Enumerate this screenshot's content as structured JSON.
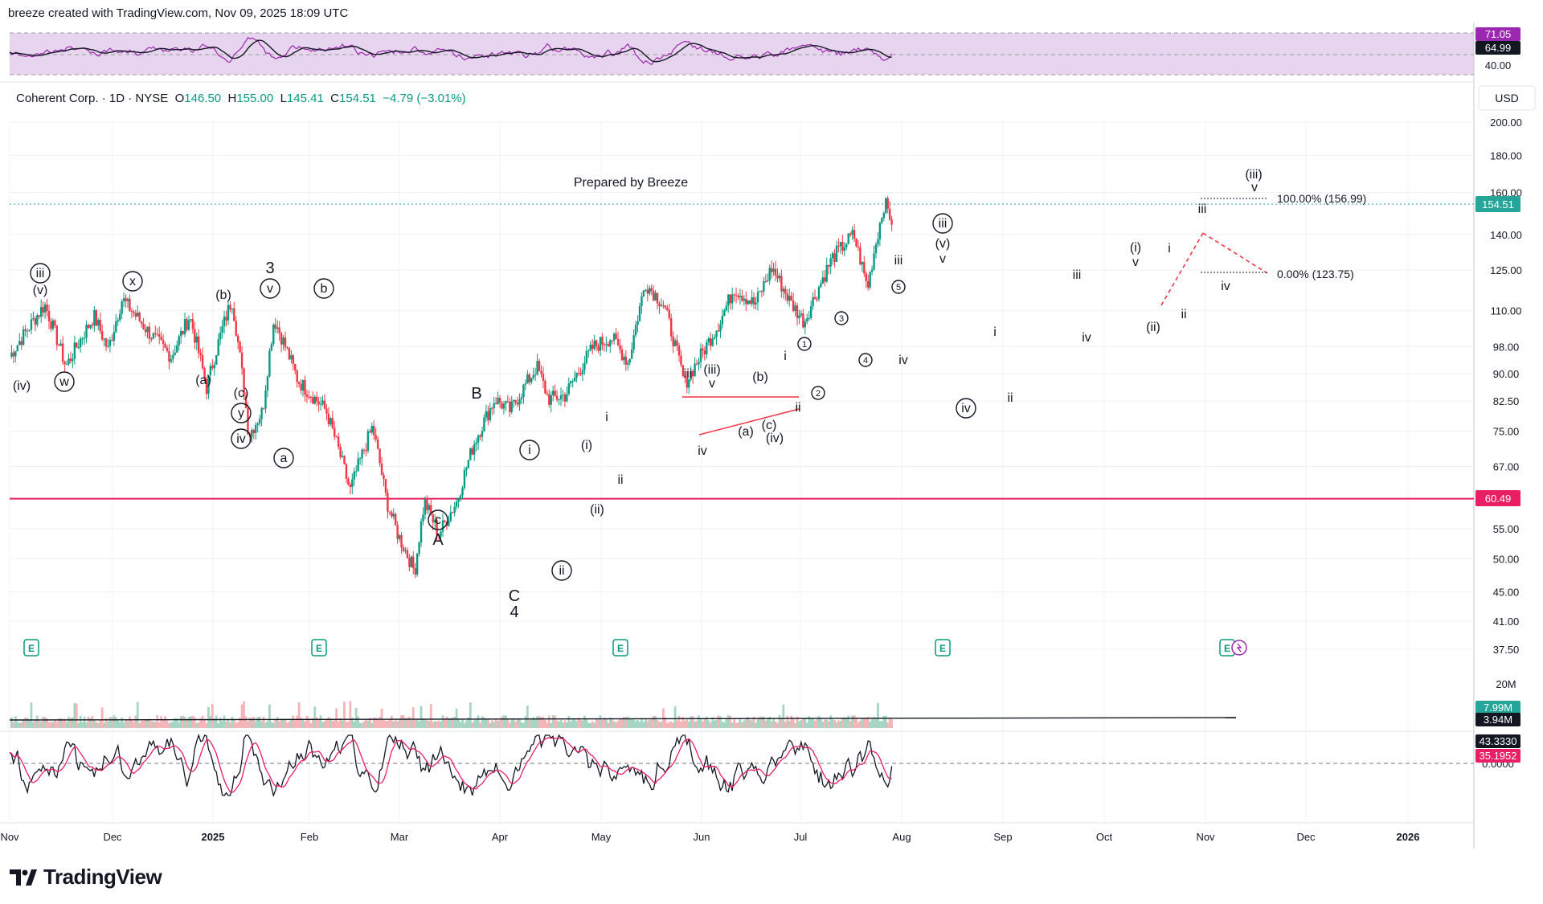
{
  "header": {
    "credit": "breeze created with TradingView.com, Nov 09, 2025 18:09 UTC"
  },
  "legend": {
    "symbol": "Coherent Corp. · 1D · NYSE",
    "open_label": "O",
    "open": "146.50",
    "high_label": "H",
    "high": "155.00",
    "low_label": "L",
    "low": "145.41",
    "close_label": "C",
    "close": "154.51",
    "change": "−4.79 (−3.01%)"
  },
  "currency": "USD",
  "annotation": "Prepared by Breeze",
  "fib": {
    "level_100": "100.00% (156.99)",
    "level_0": "0.00% (123.75)"
  },
  "logo_text": "TradingView",
  "colors": {
    "up": "#089981",
    "down": "#f23645",
    "support": "#e91e63",
    "rsi_band": "#e1bee7",
    "rsi_line": "#9c27b0",
    "price_tag": "#26a69a"
  },
  "icons": {
    "earnings": "earnings-E-icon",
    "dividend": "dividend-icon",
    "logo": "tradingview-logo-icon"
  },
  "chart_data": [
    {
      "type": "line",
      "panel": "rsi",
      "y_ticks": [
        "71.05",
        "64.99",
        "40.00"
      ],
      "badges": [
        {
          "text": "71.05",
          "bg": "#9c27b0"
        },
        {
          "text": "64.99",
          "bg": "#131722"
        }
      ]
    },
    {
      "type": "candlestick",
      "panel": "price",
      "y_scale": "log",
      "y_ticks": [
        "200.00",
        "180.00",
        "160.00",
        "140.00",
        "125.00",
        "110.00",
        "98.00",
        "90.00",
        "82.50",
        "75.00",
        "67.00",
        "60.49",
        "55.00",
        "50.00",
        "45.00",
        "41.00",
        "37.50"
      ],
      "x_ticks": [
        "Nov",
        "Dec",
        "2025",
        "Feb",
        "Mar",
        "Apr",
        "May",
        "Jun",
        "Jul",
        "Aug",
        "Sep",
        "Oct",
        "Nov",
        "Dec",
        "2026"
      ],
      "last_price": "154.51",
      "support_level": "60.49",
      "anchors": [
        {
          "x": 0,
          "y": 95
        },
        {
          "x": 25,
          "y": 112
        },
        {
          "x": 40,
          "y": 92
        },
        {
          "x": 60,
          "y": 108
        },
        {
          "x": 70,
          "y": 97
        },
        {
          "x": 80,
          "y": 114
        },
        {
          "x": 100,
          "y": 102
        },
        {
          "x": 115,
          "y": 95
        },
        {
          "x": 128,
          "y": 108
        },
        {
          "x": 140,
          "y": 86
        },
        {
          "x": 152,
          "y": 105
        },
        {
          "x": 158,
          "y": 114
        },
        {
          "x": 170,
          "y": 74
        },
        {
          "x": 180,
          "y": 80
        },
        {
          "x": 188,
          "y": 107
        },
        {
          "x": 205,
          "y": 88
        },
        {
          "x": 225,
          "y": 80
        },
        {
          "x": 242,
          "y": 62
        },
        {
          "x": 258,
          "y": 76
        },
        {
          "x": 268,
          "y": 60
        },
        {
          "x": 276,
          "y": 54
        },
        {
          "x": 288,
          "y": 48
        },
        {
          "x": 295,
          "y": 60
        },
        {
          "x": 305,
          "y": 54
        },
        {
          "x": 318,
          "y": 60
        },
        {
          "x": 330,
          "y": 72
        },
        {
          "x": 345,
          "y": 83
        },
        {
          "x": 356,
          "y": 80
        },
        {
          "x": 375,
          "y": 92
        },
        {
          "x": 383,
          "y": 83
        },
        {
          "x": 395,
          "y": 84
        },
        {
          "x": 415,
          "y": 98
        },
        {
          "x": 428,
          "y": 101
        },
        {
          "x": 440,
          "y": 93
        },
        {
          "x": 452,
          "y": 120
        },
        {
          "x": 465,
          "y": 112
        },
        {
          "x": 480,
          "y": 87
        },
        {
          "x": 495,
          "y": 98
        },
        {
          "x": 505,
          "y": 106
        },
        {
          "x": 515,
          "y": 118
        },
        {
          "x": 530,
          "y": 112
        },
        {
          "x": 542,
          "y": 126
        },
        {
          "x": 555,
          "y": 113
        },
        {
          "x": 565,
          "y": 106
        },
        {
          "x": 585,
          "y": 130
        },
        {
          "x": 600,
          "y": 140
        },
        {
          "x": 610,
          "y": 118
        },
        {
          "x": 622,
          "y": 155
        },
        {
          "x": 628,
          "y": 145
        }
      ]
    },
    {
      "type": "bar",
      "panel": "volume",
      "y_ticks": [
        "20M"
      ],
      "badges": [
        {
          "text": "7.99M",
          "bg": "#26a69a"
        },
        {
          "text": "3.94M",
          "bg": "#131722"
        }
      ]
    },
    {
      "type": "line",
      "panel": "oscillator",
      "y_ticks": [
        "0.0000"
      ],
      "badges": [
        {
          "text": "43.3330",
          "bg": "#131722"
        },
        {
          "text": "35.1952",
          "bg": "#e91e63"
        }
      ]
    }
  ],
  "wave_labels": [
    {
      "t": "(iv)",
      "x": 27,
      "y": 485,
      "c": false
    },
    {
      "t": "iii",
      "x": 50,
      "y": 345,
      "c": true
    },
    {
      "t": "(v)",
      "x": 50,
      "y": 366,
      "c": false
    },
    {
      "t": "w",
      "x": 80,
      "y": 480,
      "c": true
    },
    {
      "t": "x",
      "x": 165,
      "y": 355,
      "c": true
    },
    {
      "t": "(b)",
      "x": 278,
      "y": 372,
      "c": false
    },
    {
      "t": "(a)",
      "x": 253,
      "y": 478,
      "c": false
    },
    {
      "t": "3",
      "x": 336,
      "y": 340,
      "c": false,
      "big": true
    },
    {
      "t": "v",
      "x": 336,
      "y": 364,
      "c": true
    },
    {
      "t": "(c)",
      "x": 300,
      "y": 494,
      "c": false
    },
    {
      "t": "y",
      "x": 300,
      "y": 519,
      "c": true
    },
    {
      "t": "iv",
      "x": 300,
      "y": 551,
      "c": true
    },
    {
      "t": "a",
      "x": 353,
      "y": 575,
      "c": true
    },
    {
      "t": "b",
      "x": 403,
      "y": 364,
      "c": true
    },
    {
      "t": "B",
      "x": 593,
      "y": 496,
      "c": false,
      "big": true
    },
    {
      "t": "c",
      "x": 545,
      "y": 652,
      "c": true
    },
    {
      "t": "A",
      "x": 545,
      "y": 678,
      "c": false,
      "big": true
    },
    {
      "t": "i",
      "x": 659,
      "y": 565,
      "c": true
    },
    {
      "t": "C",
      "x": 640,
      "y": 748,
      "c": false,
      "big": true
    },
    {
      "t": "4",
      "x": 640,
      "y": 768,
      "c": false,
      "big": true
    },
    {
      "t": "ii",
      "x": 699,
      "y": 715,
      "c": true
    },
    {
      "t": "(i)",
      "x": 730,
      "y": 559,
      "c": false
    },
    {
      "t": "ii",
      "x": 772,
      "y": 602,
      "c": false
    },
    {
      "t": "(ii)",
      "x": 743,
      "y": 639,
      "c": false
    },
    {
      "t": "i",
      "x": 755,
      "y": 524,
      "c": false
    },
    {
      "t": "iii",
      "x": 856,
      "y": 470,
      "c": false
    },
    {
      "t": "(iii)",
      "x": 886,
      "y": 465,
      "c": false
    },
    {
      "t": "v",
      "x": 886,
      "y": 482,
      "c": false
    },
    {
      "t": "iv",
      "x": 874,
      "y": 566,
      "c": false
    },
    {
      "t": "(a)",
      "x": 928,
      "y": 542,
      "c": false
    },
    {
      "t": "(b)",
      "x": 946,
      "y": 474,
      "c": false
    },
    {
      "t": "(c)",
      "x": 957,
      "y": 534,
      "c": false
    },
    {
      "t": "(iv)",
      "x": 964,
      "y": 550,
      "c": false
    },
    {
      "t": "ii",
      "x": 993,
      "y": 512,
      "c": false
    },
    {
      "t": "2",
      "x": 1018,
      "y": 493,
      "c": true,
      "small": true
    },
    {
      "t": "i",
      "x": 977,
      "y": 448,
      "c": false
    },
    {
      "t": "1",
      "x": 1001,
      "y": 432,
      "c": true,
      "small": true
    },
    {
      "t": "3",
      "x": 1047,
      "y": 400,
      "c": true,
      "small": true
    },
    {
      "t": "4",
      "x": 1077,
      "y": 452,
      "c": true,
      "small": true
    },
    {
      "t": "5",
      "x": 1118,
      "y": 361,
      "c": true,
      "small": true
    },
    {
      "t": "iii",
      "x": 1118,
      "y": 329,
      "c": false
    },
    {
      "t": "iv",
      "x": 1124,
      "y": 453,
      "c": false
    },
    {
      "t": "iii",
      "x": 1173,
      "y": 283,
      "c": true
    },
    {
      "t": "(v)",
      "x": 1173,
      "y": 308,
      "c": false
    },
    {
      "t": "v",
      "x": 1173,
      "y": 327,
      "c": false
    },
    {
      "t": "iv",
      "x": 1202,
      "y": 513,
      "c": true
    },
    {
      "t": "i",
      "x": 1238,
      "y": 418,
      "c": false
    },
    {
      "t": "ii",
      "x": 1257,
      "y": 500,
      "c": false
    },
    {
      "t": "iii",
      "x": 1340,
      "y": 347,
      "c": false
    },
    {
      "t": "iv",
      "x": 1352,
      "y": 425,
      "c": false
    },
    {
      "t": "(i)",
      "x": 1413,
      "y": 313,
      "c": false
    },
    {
      "t": "v",
      "x": 1413,
      "y": 331,
      "c": false
    },
    {
      "t": "(ii)",
      "x": 1435,
      "y": 412,
      "c": false
    },
    {
      "t": "i",
      "x": 1455,
      "y": 314,
      "c": false
    },
    {
      "t": "ii",
      "x": 1473,
      "y": 396,
      "c": false
    },
    {
      "t": "iii",
      "x": 1496,
      "y": 265,
      "c": false
    },
    {
      "t": "iv",
      "x": 1525,
      "y": 361,
      "c": false
    },
    {
      "t": "(iii)",
      "x": 1560,
      "y": 222,
      "c": false
    },
    {
      "t": "v",
      "x": 1561,
      "y": 238,
      "c": false
    }
  ]
}
